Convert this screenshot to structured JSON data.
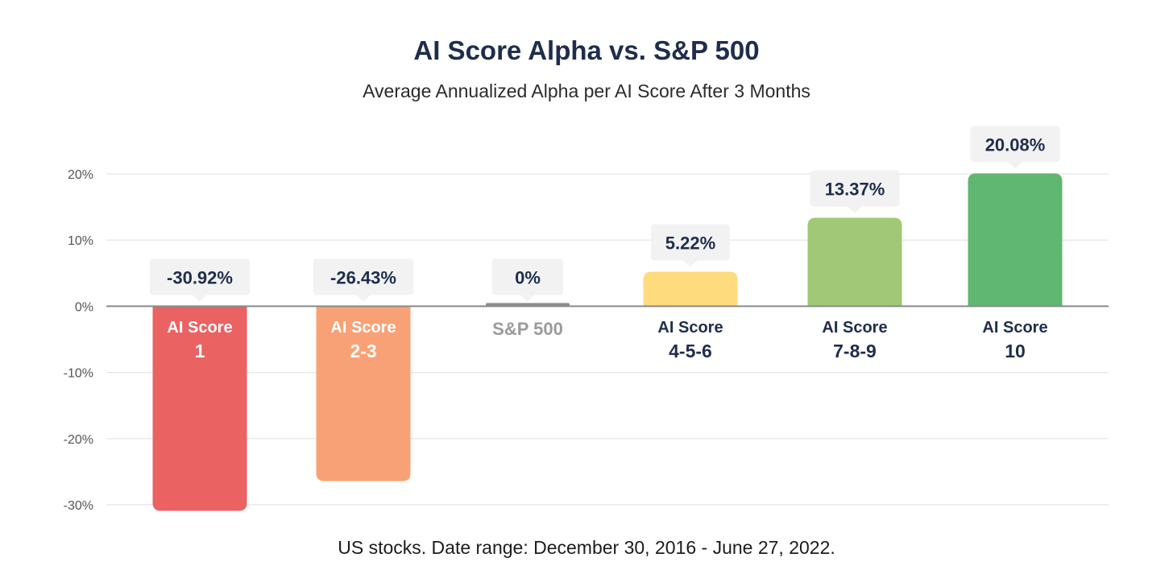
{
  "chart_data": {
    "type": "bar",
    "title": "AI Score Alpha vs. S&P 500",
    "subtitle": "Average Annualized Alpha per AI Score After 3 Months",
    "footnote": "US stocks. Date range: December 30, 2016 - June 27, 2022.",
    "xlabel": "",
    "ylabel": "",
    "ylim": [
      -30,
      20
    ],
    "yticks": [
      20,
      10,
      0,
      -10,
      -20,
      -30
    ],
    "ytick_labels": [
      "20%",
      "10%",
      "0%",
      "-10%",
      "-20%",
      "-30%"
    ],
    "grid": true,
    "legend": "none",
    "categories": [
      {
        "line1": "AI Score",
        "line2": "1"
      },
      {
        "line1": "AI Score",
        "line2": "2-3"
      },
      {
        "line1": "S&P 500",
        "line2": ""
      },
      {
        "line1": "AI Score",
        "line2": "4-5-6"
      },
      {
        "line1": "AI Score",
        "line2": "7-8-9"
      },
      {
        "line1": "AI Score",
        "line2": "10"
      }
    ],
    "values": [
      -30.92,
      -26.43,
      0,
      5.22,
      13.37,
      20.08
    ],
    "value_labels": [
      "-30.92%",
      "-26.43%",
      "0%",
      "5.22%",
      "13.37%",
      "20.08%"
    ],
    "bar_colors": [
      "#eb6262",
      "#f9a176",
      "#8c8c8c",
      "#fedb7c",
      "#a1c877",
      "#5fb772"
    ],
    "category_label_colors": [
      "#ffffff",
      "#ffffff",
      "#9b9b9b",
      "#1f2d4d",
      "#1f2d4d",
      "#1f2d4d"
    ],
    "value_label_color": "#1f2d4d",
    "value_label_bg": "#f2f2f2",
    "grid_color": "#e3e3e3",
    "axis_color": "#8a8a8a",
    "tick_label_color": "#555555"
  }
}
